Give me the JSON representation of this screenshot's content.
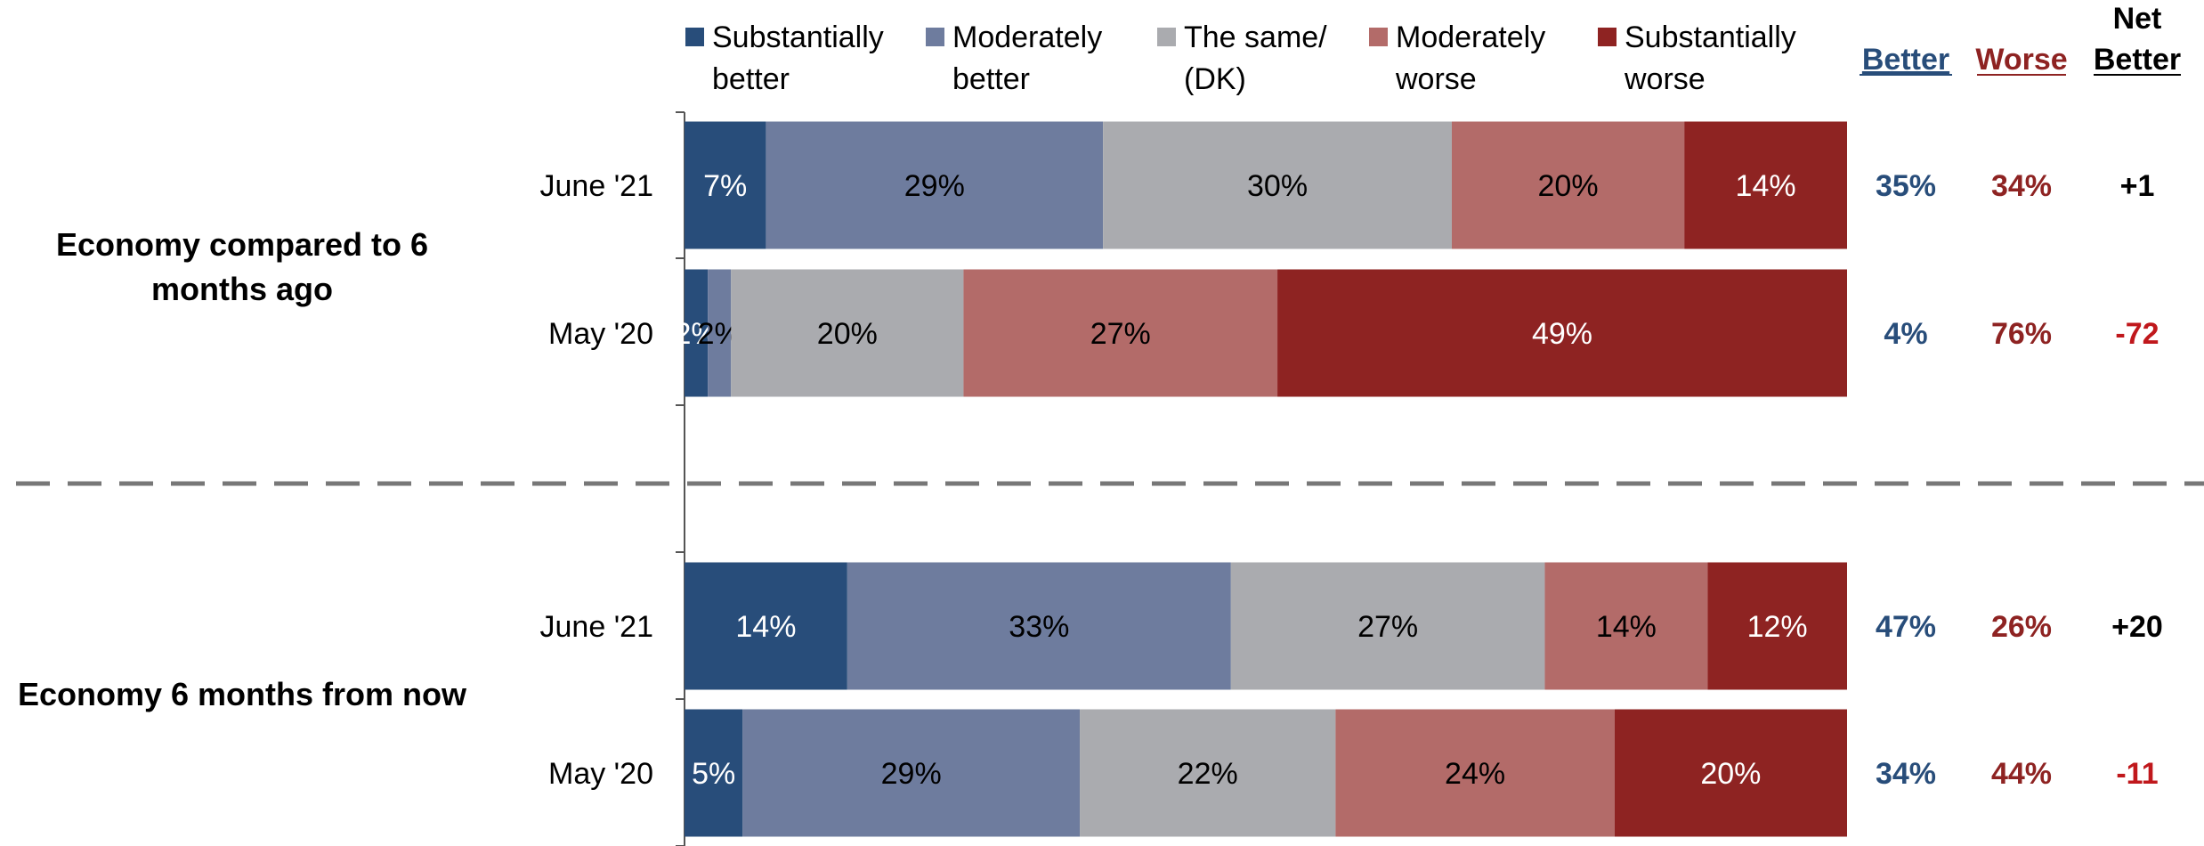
{
  "chart_data": {
    "type": "bar",
    "stacked": true,
    "orientation": "horizontal",
    "legend_position": "top",
    "xlim": [
      0,
      100
    ],
    "grid": false,
    "legend": [
      {
        "line1": "Substantially",
        "line2": "better",
        "color": "#284d7a"
      },
      {
        "line1": "Moderately",
        "line2": "better",
        "color": "#6e7c9e"
      },
      {
        "line1": "The same/",
        "line2": "(DK)",
        "color": "#aaabaf"
      },
      {
        "line1": "Moderately",
        "line2": "worse",
        "color": "#b36b69"
      },
      {
        "line1": "Substantially",
        "line2": "worse",
        "color": "#8e2322"
      }
    ],
    "summary_headers": {
      "better": "Better",
      "worse": "Worse",
      "net_line1": "Net",
      "net_line2": "Better"
    },
    "colors": {
      "better_text": "#284d7a",
      "worse_text": "#8e2322",
      "net_positive": "#000000",
      "net_negative": "#c0181c",
      "light_label": "#ffffff",
      "dark_label": "#000000",
      "axis": "#555555",
      "divider": "#777777"
    },
    "groups": [
      {
        "title_line1": "Economy compared to 6",
        "title_line2": "months ago",
        "rows": [
          {
            "label": "June '21",
            "values": [
              7,
              29,
              30,
              20,
              14
            ],
            "value_labels": [
              "7%",
              "29%",
              "30%",
              "20%",
              "14%"
            ],
            "better": "35%",
            "worse": "34%",
            "net": "+1"
          },
          {
            "label": "May '20",
            "values": [
              2,
              2,
              20,
              27,
              49
            ],
            "value_labels": [
              "2%",
              "2%",
              "20%",
              "27%",
              "49%"
            ],
            "better": "4%",
            "worse": "76%",
            "net": "-72"
          }
        ]
      },
      {
        "title_line1": "Economy 6 months from now",
        "title_line2": "",
        "rows": [
          {
            "label": "June '21",
            "values": [
              14,
              33,
              27,
              14,
              12
            ],
            "value_labels": [
              "14%",
              "33%",
              "27%",
              "14%",
              "12%"
            ],
            "better": "47%",
            "worse": "26%",
            "net": "+20"
          },
          {
            "label": "May '20",
            "values": [
              5,
              29,
              22,
              24,
              20
            ],
            "value_labels": [
              "5%",
              "29%",
              "22%",
              "24%",
              "20%"
            ],
            "better": "34%",
            "worse": "44%",
            "net": "-11"
          }
        ]
      }
    ]
  }
}
